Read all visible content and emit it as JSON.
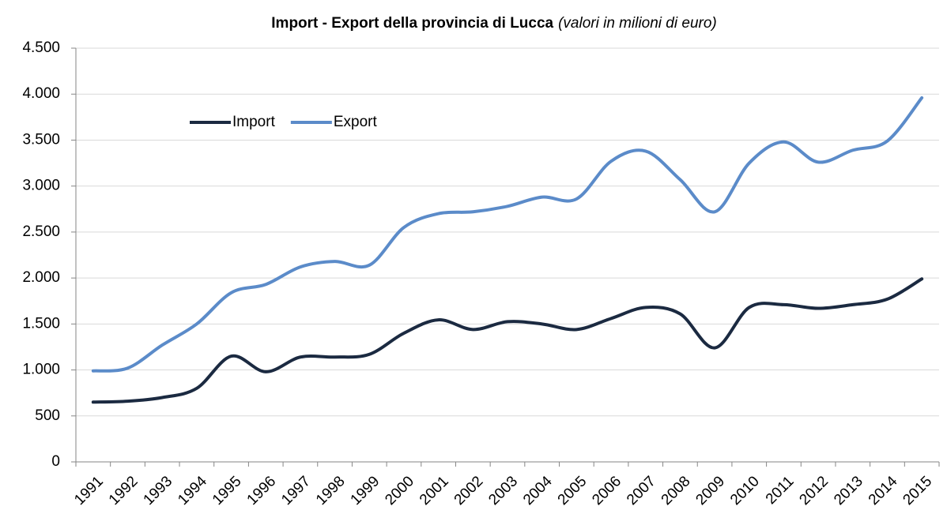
{
  "chart_data": {
    "type": "line",
    "title": "Import - Export della provincia di Lucca",
    "subtitle": "(valori in milioni di euro)",
    "categories": [
      "1991",
      "1992",
      "1993",
      "1994",
      "1995",
      "1996",
      "1997",
      "1998",
      "1999",
      "2000",
      "2001",
      "2002",
      "2003",
      "2004",
      "2005",
      "2006",
      "2007",
      "2008",
      "2009",
      "2010",
      "2011",
      "2012",
      "2013",
      "2014",
      "2015"
    ],
    "series": [
      {
        "name": "Import",
        "color": "#1b2a41",
        "values": [
          650,
          660,
          700,
          800,
          1150,
          980,
          1140,
          1140,
          1170,
          1400,
          1545,
          1440,
          1525,
          1500,
          1440,
          1560,
          1680,
          1610,
          1240,
          1680,
          1710,
          1670,
          1710,
          1770,
          1990
        ]
      },
      {
        "name": "Export",
        "color": "#5b8bc9",
        "values": [
          990,
          1020,
          1270,
          1500,
          1840,
          1930,
          2120,
          2180,
          2140,
          2550,
          2700,
          2720,
          2780,
          2880,
          2860,
          3270,
          3380,
          3070,
          2720,
          3250,
          3480,
          3260,
          3390,
          3490,
          3960
        ]
      }
    ],
    "ylim": [
      0,
      4500
    ],
    "yticks": [
      0,
      500,
      {
        "value": 1000,
        "label": "1.000"
      },
      {
        "value": 1500,
        "label": "1.500"
      },
      {
        "value": 2000,
        "label": "2.000"
      },
      {
        "value": 2500,
        "label": "2.500"
      },
      {
        "value": 3000,
        "label": "3.000"
      },
      {
        "value": 3500,
        "label": "3.500"
      },
      {
        "value": 4000,
        "label": "4.000"
      },
      {
        "value": 4500,
        "label": "4.500"
      }
    ],
    "grid": true,
    "smooth": true,
    "legend": "upper left"
  }
}
